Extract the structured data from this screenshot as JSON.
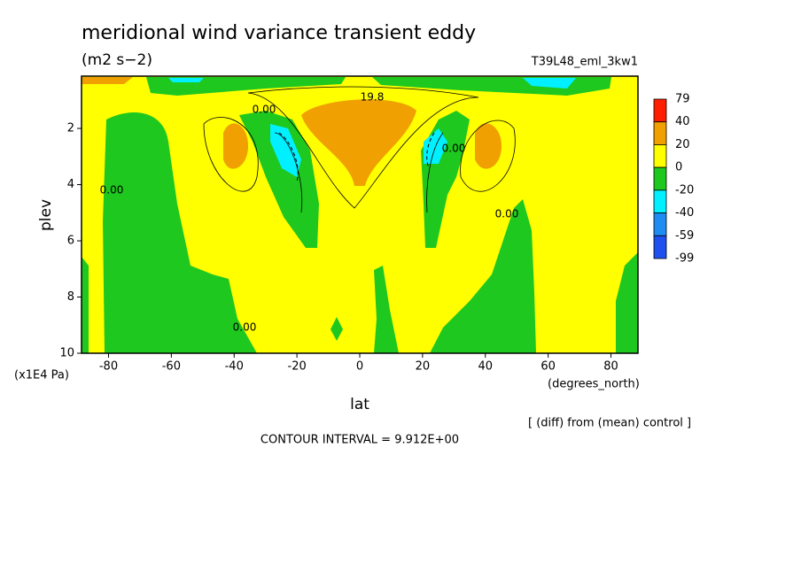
{
  "chart_data": {
    "type": "contour",
    "title": "meridional wind variance transient eddy",
    "subtitle": "(m2 s−2)",
    "run_label": "T39L48_eml_3kw1",
    "x_label": "lat",
    "x_unit": "(degrees_north)",
    "y_label": "plev",
    "y_unit": "(x1E4 Pa)",
    "note": "[ (diff) from (mean) control ]",
    "contour_interval": "CONTOUR INTERVAL = 9.912E+00",
    "xlim": [
      -88.6,
      88.6
    ],
    "xticks": [
      -80,
      -60,
      -40,
      -20,
      0,
      20,
      40,
      60,
      80
    ],
    "ylim": [
      10,
      0.14
    ],
    "yticks": [
      2,
      4,
      6,
      8,
      10
    ],
    "colorbar": {
      "bounds": [
        79,
        40,
        20,
        0,
        -20,
        -40,
        -59,
        -99
      ],
      "colors": [
        "#ff1e00",
        "#f0a000",
        "#ffff00",
        "#1ec81e",
        "#00f0ff",
        "#1e8cf0",
        "#1e50f0"
      ]
    },
    "contour_labels": [
      "0.00",
      "19.8",
      "0.00",
      "0.00",
      "0.00",
      "0.00"
    ]
  }
}
